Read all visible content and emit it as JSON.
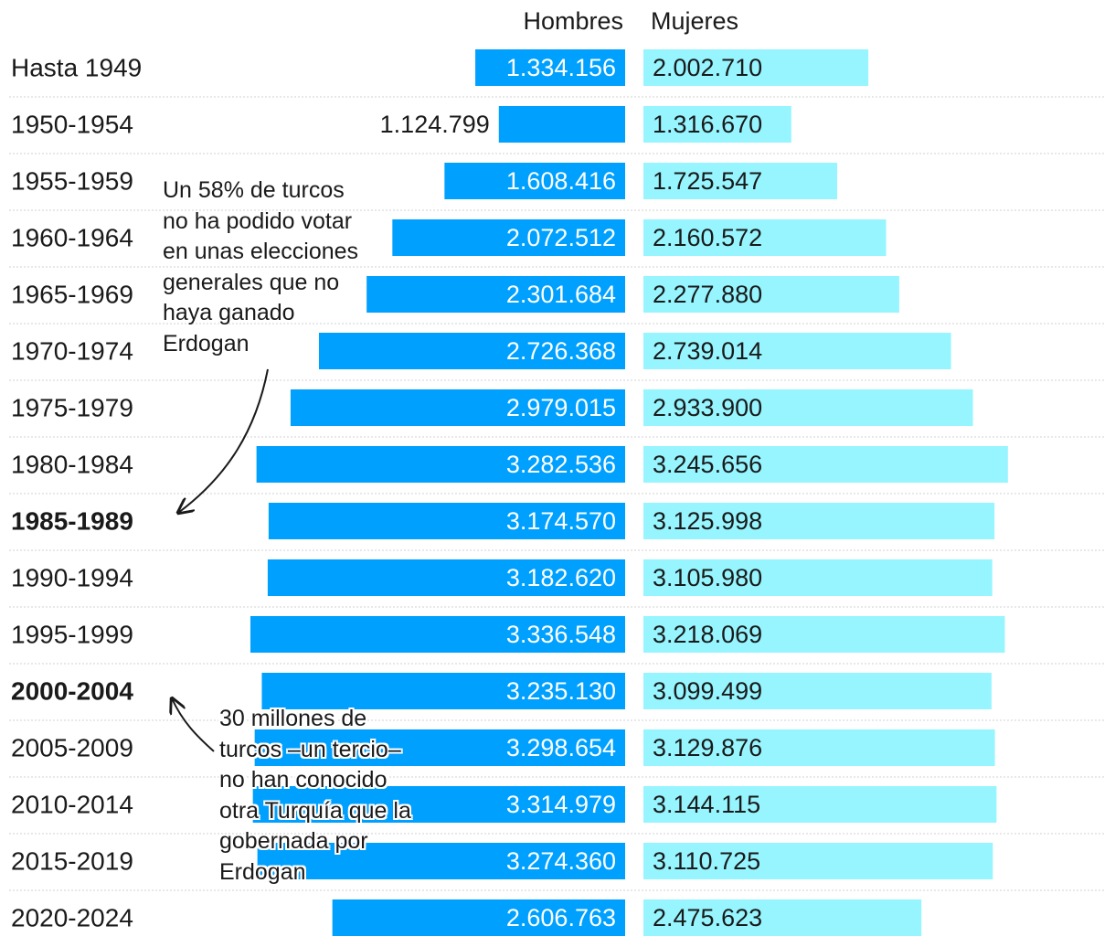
{
  "colors": {
    "men": "#00A0FF",
    "women": "#96F5FF",
    "rule": "#d0d0d0",
    "text": "#1a1a1a",
    "label_on_men": "#ffffff"
  },
  "headers": {
    "men": "Hombres",
    "women": "Mujeres"
  },
  "annotations": {
    "first": "Un 58% de turcos\nno ha podido votar\nen unas elecciones\ngenerales que no\nhaya ganado\nErdogan",
    "second": "30 millones de\nturcos –un tercio–\nno han conocido\notra Turquía que la\ngobernada por\nErdogan"
  },
  "chart_data": {
    "type": "bar",
    "orientation": "horizontal-butterfly",
    "categories": [
      "Hasta 1949",
      "1950-1954",
      "1955-1959",
      "1960-1964",
      "1965-1969",
      "1970-1974",
      "1975-1979",
      "1980-1984",
      "1985-1989",
      "1990-1994",
      "1995-1999",
      "2000-2004",
      "2005-2009",
      "2010-2014",
      "2015-2019",
      "2020-2024"
    ],
    "highlighted_categories": [
      "1985-1989",
      "2000-2004"
    ],
    "series": [
      {
        "name": "Hombres",
        "values": [
          1334156,
          1124799,
          1608416,
          2072512,
          2301684,
          2726368,
          2979015,
          3282536,
          3174570,
          3182620,
          3336548,
          3235130,
          3298654,
          3314979,
          3274360,
          2606763
        ],
        "labels": [
          "1.334.156",
          "1.124.799",
          "1.608.416",
          "2.072.512",
          "2.301.684",
          "2.726.368",
          "2.979.015",
          "3.282.536",
          "3.174.570",
          "3.182.620",
          "3.336.548",
          "3.235.130",
          "3.298.654",
          "3.314.979",
          "3.274.360",
          "2.606.763"
        ]
      },
      {
        "name": "Mujeres",
        "values": [
          2002710,
          1316670,
          1725547,
          2160572,
          2277880,
          2739014,
          2933900,
          3245656,
          3125998,
          3105980,
          3218069,
          3099499,
          3129876,
          3144115,
          3110725,
          2475623
        ],
        "labels": [
          "2.002.710",
          "1.316.670",
          "1.725.547",
          "2.160.572",
          "2.277.880",
          "2.739.014",
          "2.933.900",
          "3.245.656",
          "3.125.998",
          "3.105.980",
          "3.218.069",
          "3.099.499",
          "3.129.876",
          "3.144.115",
          "3.110.725",
          "2.475.623"
        ]
      }
    ],
    "legend": "top",
    "grid": false
  }
}
